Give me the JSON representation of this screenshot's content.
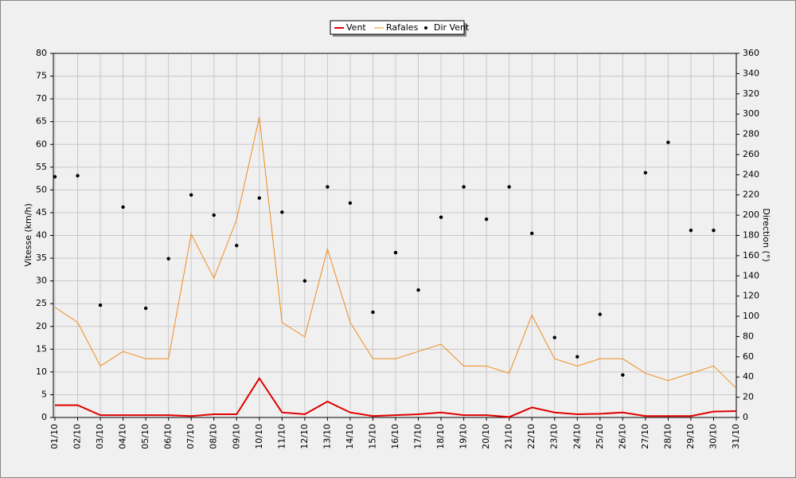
{
  "chart_data": {
    "type": "line",
    "y_label": "Vitesse (km/h)",
    "y2_label": "Direction (°)",
    "categories": [
      "01/10",
      "02/10",
      "03/10",
      "04/10",
      "05/10",
      "06/10",
      "07/10",
      "08/10",
      "09/10",
      "10/10",
      "11/10",
      "12/10",
      "13/10",
      "14/10",
      "15/10",
      "16/10",
      "17/10",
      "18/10",
      "19/10",
      "20/10",
      "21/10",
      "22/10",
      "23/10",
      "24/10",
      "25/10",
      "26/10",
      "27/10",
      "28/10",
      "29/10",
      "30/10",
      "31/10"
    ],
    "series": [
      {
        "name": "Vent",
        "color": "#e00000",
        "values": [
          2.7,
          2.7,
          0.5,
          0.5,
          0.5,
          0.5,
          0.3,
          0.7,
          0.7,
          8.6,
          1.1,
          0.7,
          3.5,
          1.1,
          0.3,
          0.5,
          0.7,
          1.1,
          0.5,
          0.5,
          0.1,
          2.2,
          1.1,
          0.7,
          0.8,
          1.1,
          0.3,
          0.3,
          0.3,
          1.3,
          1.4
        ]
      },
      {
        "name": "Rafales",
        "color": "#f08c1e",
        "values": [
          24.2,
          20.9,
          11.3,
          14.5,
          12.9,
          12.9,
          40.3,
          30.6,
          43.5,
          66,
          20.9,
          17.7,
          37,
          20.9,
          12.9,
          12.9,
          14.5,
          16.1,
          11.3,
          11.3,
          9.7,
          22.5,
          12.9,
          11.3,
          12.9,
          12.9,
          9.7,
          8.1,
          9.7,
          11.3,
          6.4
        ]
      },
      {
        "name": "Dir Vent",
        "color": "#000000",
        "axis": "y2",
        "marker": "dot",
        "values": [
          238,
          239,
          111,
          208,
          108,
          157,
          220,
          200,
          170,
          217,
          203,
          135,
          228,
          212,
          104,
          163,
          126,
          198,
          228,
          196,
          228,
          182,
          79,
          60,
          102,
          42,
          242,
          272,
          185,
          185,
          null
        ]
      }
    ],
    "ylim": [
      0,
      80
    ],
    "yticks": [
      0,
      5,
      10,
      15,
      20,
      25,
      30,
      35,
      40,
      45,
      50,
      55,
      60,
      65,
      70,
      75,
      80
    ],
    "y2lim": [
      0,
      360
    ],
    "y2ticks": [
      0,
      20,
      40,
      60,
      80,
      100,
      120,
      140,
      160,
      180,
      200,
      220,
      240,
      260,
      280,
      300,
      320,
      340,
      360
    ],
    "grid": true,
    "legend": "top"
  }
}
